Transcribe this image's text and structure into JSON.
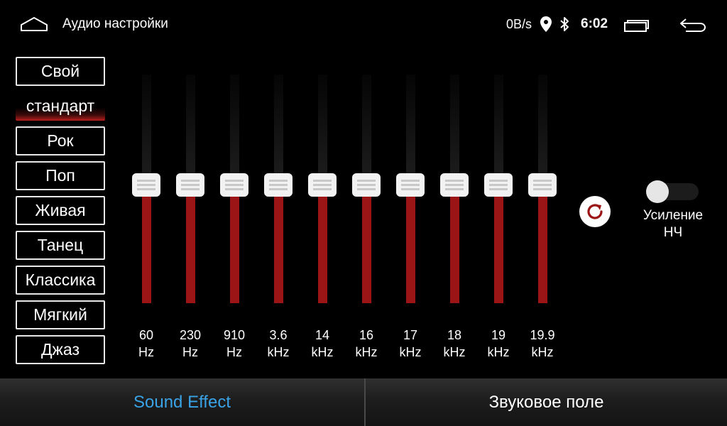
{
  "statusbar": {
    "title": "Аудио настройки",
    "net_speed": "0B/s",
    "time": "6:02"
  },
  "presets": [
    {
      "label": "Свой",
      "active": false
    },
    {
      "label": "стандарт",
      "active": true
    },
    {
      "label": "Рок",
      "active": false
    },
    {
      "label": "Поп",
      "active": false
    },
    {
      "label": "Живая",
      "active": false
    },
    {
      "label": "Танец",
      "active": false
    },
    {
      "label": "Классика",
      "active": false
    },
    {
      "label": "Мягкий",
      "active": false
    },
    {
      "label": "Джаз",
      "active": false
    }
  ],
  "equalizer": {
    "bands": [
      {
        "value": "60",
        "unit": "Hz",
        "level": 0.5
      },
      {
        "value": "230",
        "unit": "Hz",
        "level": 0.5
      },
      {
        "value": "910",
        "unit": "Hz",
        "level": 0.5
      },
      {
        "value": "3.6",
        "unit": "kHz",
        "level": 0.5
      },
      {
        "value": "14",
        "unit": "kHz",
        "level": 0.5
      },
      {
        "value": "16",
        "unit": "kHz",
        "level": 0.5
      },
      {
        "value": "17",
        "unit": "kHz",
        "level": 0.5
      },
      {
        "value": "18",
        "unit": "kHz",
        "level": 0.5
      },
      {
        "value": "19",
        "unit": "kHz",
        "level": 0.5
      },
      {
        "value": "19.9",
        "unit": "kHz",
        "level": 0.5
      }
    ],
    "bass_boost": {
      "label_line1": "Усиление",
      "label_line2": "НЧ",
      "enabled": false
    }
  },
  "tabs": {
    "sound_effect": "Sound Effect",
    "sound_field": "Звуковое поле",
    "active": "sound_effect"
  },
  "colors": {
    "accent_blue": "#3aa3e6",
    "eq_red": "#9b1516",
    "background": "#000000"
  },
  "icons": {
    "home": "home-icon",
    "location": "location-icon",
    "bluetooth": "bluetooth-icon",
    "recent": "recent-apps-icon",
    "back": "back-arrow-icon",
    "reset": "reset-icon"
  }
}
